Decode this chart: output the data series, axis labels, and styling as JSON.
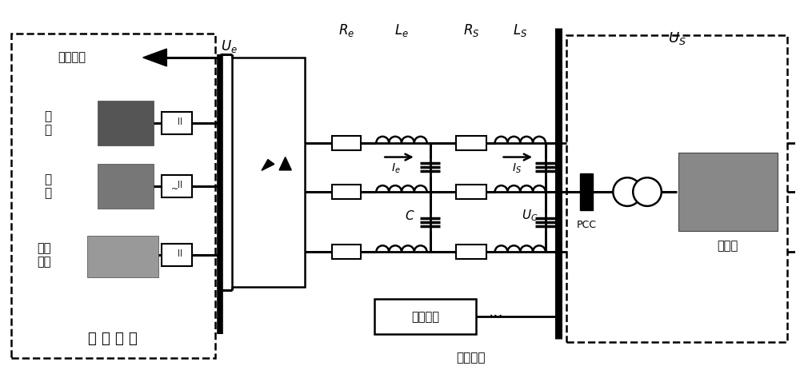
{
  "fig_width": 10.0,
  "fig_height": 4.88,
  "dpi": 100,
  "bg_color": "#ffffff",
  "labels": {
    "Ue": "$U_e$",
    "Re": "$R_e$",
    "Le": "$L_e$",
    "Ie": "$I_e$",
    "Rs": "$R_S$",
    "Ls": "$L_S$",
    "Is": "$I_S$",
    "Uc": "$U_C$",
    "C": "$C$",
    "Us": "$U_S$",
    "PCC": "PCC",
    "ac_microgrid": "交流微网",
    "ac_bus": "交流母线",
    "dc_microgrid": "直 流 微 网",
    "dc_load": "直流负荷",
    "pv": "光\n伏",
    "wind": "风\n机",
    "storage": "储能\n装置",
    "distribution": "配电网"
  }
}
